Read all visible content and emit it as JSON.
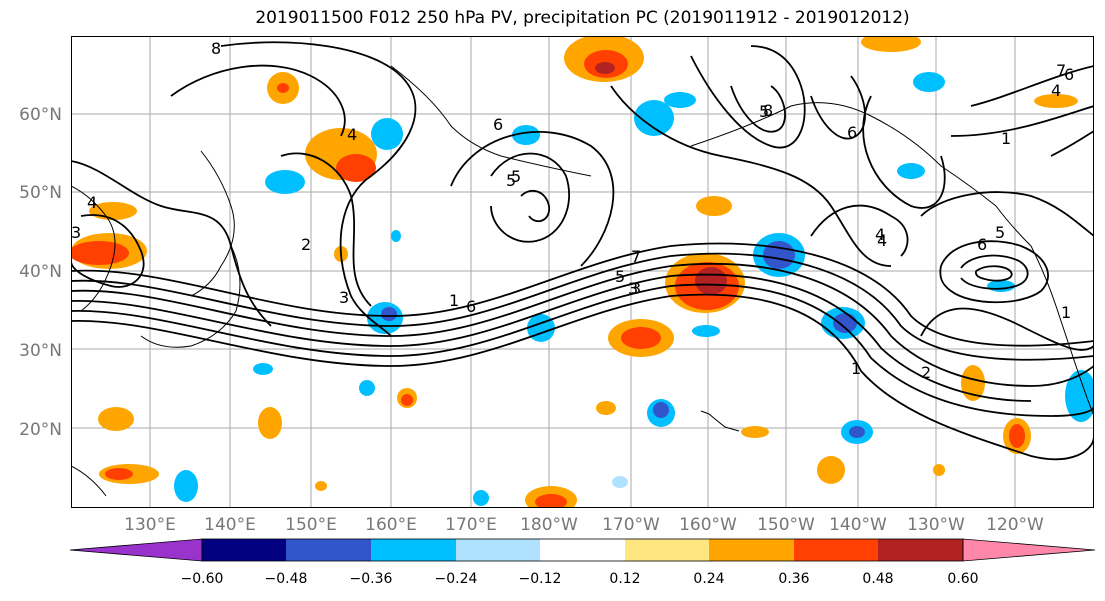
{
  "title": "2019011500 F012 250 hPa PV, precipitation PC (2019011912 - 2019012012)",
  "lat_labels": [
    "60°N",
    "50°N",
    "40°N",
    "30°N",
    "20°N"
  ],
  "lon_labels": [
    "130°E",
    "140°E",
    "150°E",
    "160°E",
    "170°E",
    "180°W",
    "170°W",
    "160°W",
    "150°W",
    "140°W",
    "130°W",
    "120°W"
  ],
  "colorbar": {
    "ticks": [
      "−0.60",
      "−0.48",
      "−0.36",
      "−0.24",
      "−0.12",
      "0.12",
      "0.24",
      "0.36",
      "0.48",
      "0.60"
    ],
    "colors": [
      "#9933cc",
      "#000080",
      "#3355cc",
      "#00bfff",
      "#b0e2ff",
      "#ffffff",
      "#ffe680",
      "#ffa500",
      "#ff4000",
      "#b22222",
      "#ff88aa"
    ]
  },
  "contour_labels": [
    "8",
    "6",
    "4",
    "3",
    "2",
    "3",
    "4",
    "5",
    "6",
    "5",
    "4",
    "7",
    "5",
    "3",
    "1",
    "6",
    "5",
    "1",
    "2",
    "1",
    "6",
    "5",
    "4",
    "1",
    "7",
    "6",
    "8",
    "3",
    "4"
  ]
}
